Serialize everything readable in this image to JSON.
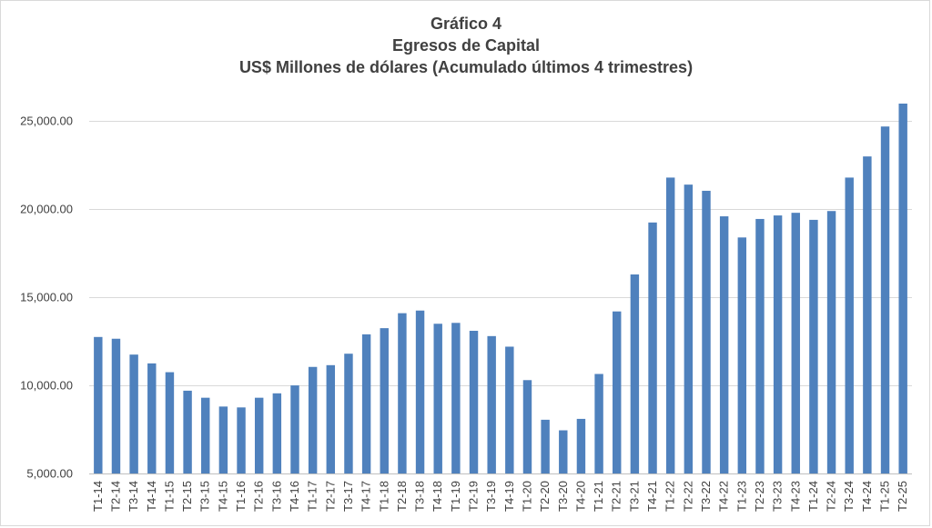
{
  "chart_data": {
    "type": "bar",
    "title": "Gráfico 4",
    "subtitle": "Egresos de Capital",
    "subtitle2": "US$ Millones de dólares (Acumulado últimos 4 trimestres)",
    "xlabel": "",
    "ylabel": "",
    "ylim": [
      5000,
      26000
    ],
    "yticks": [
      5000,
      10000,
      15000,
      20000,
      25000
    ],
    "ytick_labels": [
      "5,000.00",
      "10,000.00",
      "15,000.00",
      "20,000.00",
      "25,000.00"
    ],
    "grid": true,
    "bar_color": "#4f81bd",
    "categories": [
      "T1-14",
      "T2-14",
      "T3-14",
      "T4-14",
      "T1-15",
      "T2-15",
      "T3-15",
      "T4-15",
      "T1-16",
      "T2-16",
      "T3-16",
      "T4-16",
      "T1-17",
      "T2-17",
      "T3-17",
      "T4-17",
      "T1-18",
      "T2-18",
      "T3-18",
      "T4-18",
      "T1-19",
      "T2-19",
      "T3-19",
      "T4-19",
      "T1-20",
      "T2-20",
      "T3-20",
      "T4-20",
      "T1-21",
      "T2-21",
      "T3-21",
      "T4-21",
      "T1-22",
      "T2-22",
      "T3-22",
      "T4-22",
      "T1-23",
      "T2-23",
      "T3-23",
      "T4-23",
      "T1-24",
      "T2-24",
      "T3-24",
      "T4-24",
      "T1-25",
      "T2-25"
    ],
    "values": [
      12750,
      12650,
      11750,
      11250,
      10750,
      9700,
      9300,
      8800,
      8750,
      9300,
      9550,
      10000,
      11050,
      11150,
      11800,
      12900,
      13250,
      14100,
      14250,
      13500,
      13550,
      13100,
      12800,
      12200,
      10300,
      8050,
      7450,
      8100,
      10650,
      14200,
      16300,
      19250,
      21800,
      21400,
      21050,
      19600,
      18400,
      19450,
      19650,
      19800,
      19400,
      19900,
      21800,
      23000,
      24700,
      26000
    ]
  }
}
